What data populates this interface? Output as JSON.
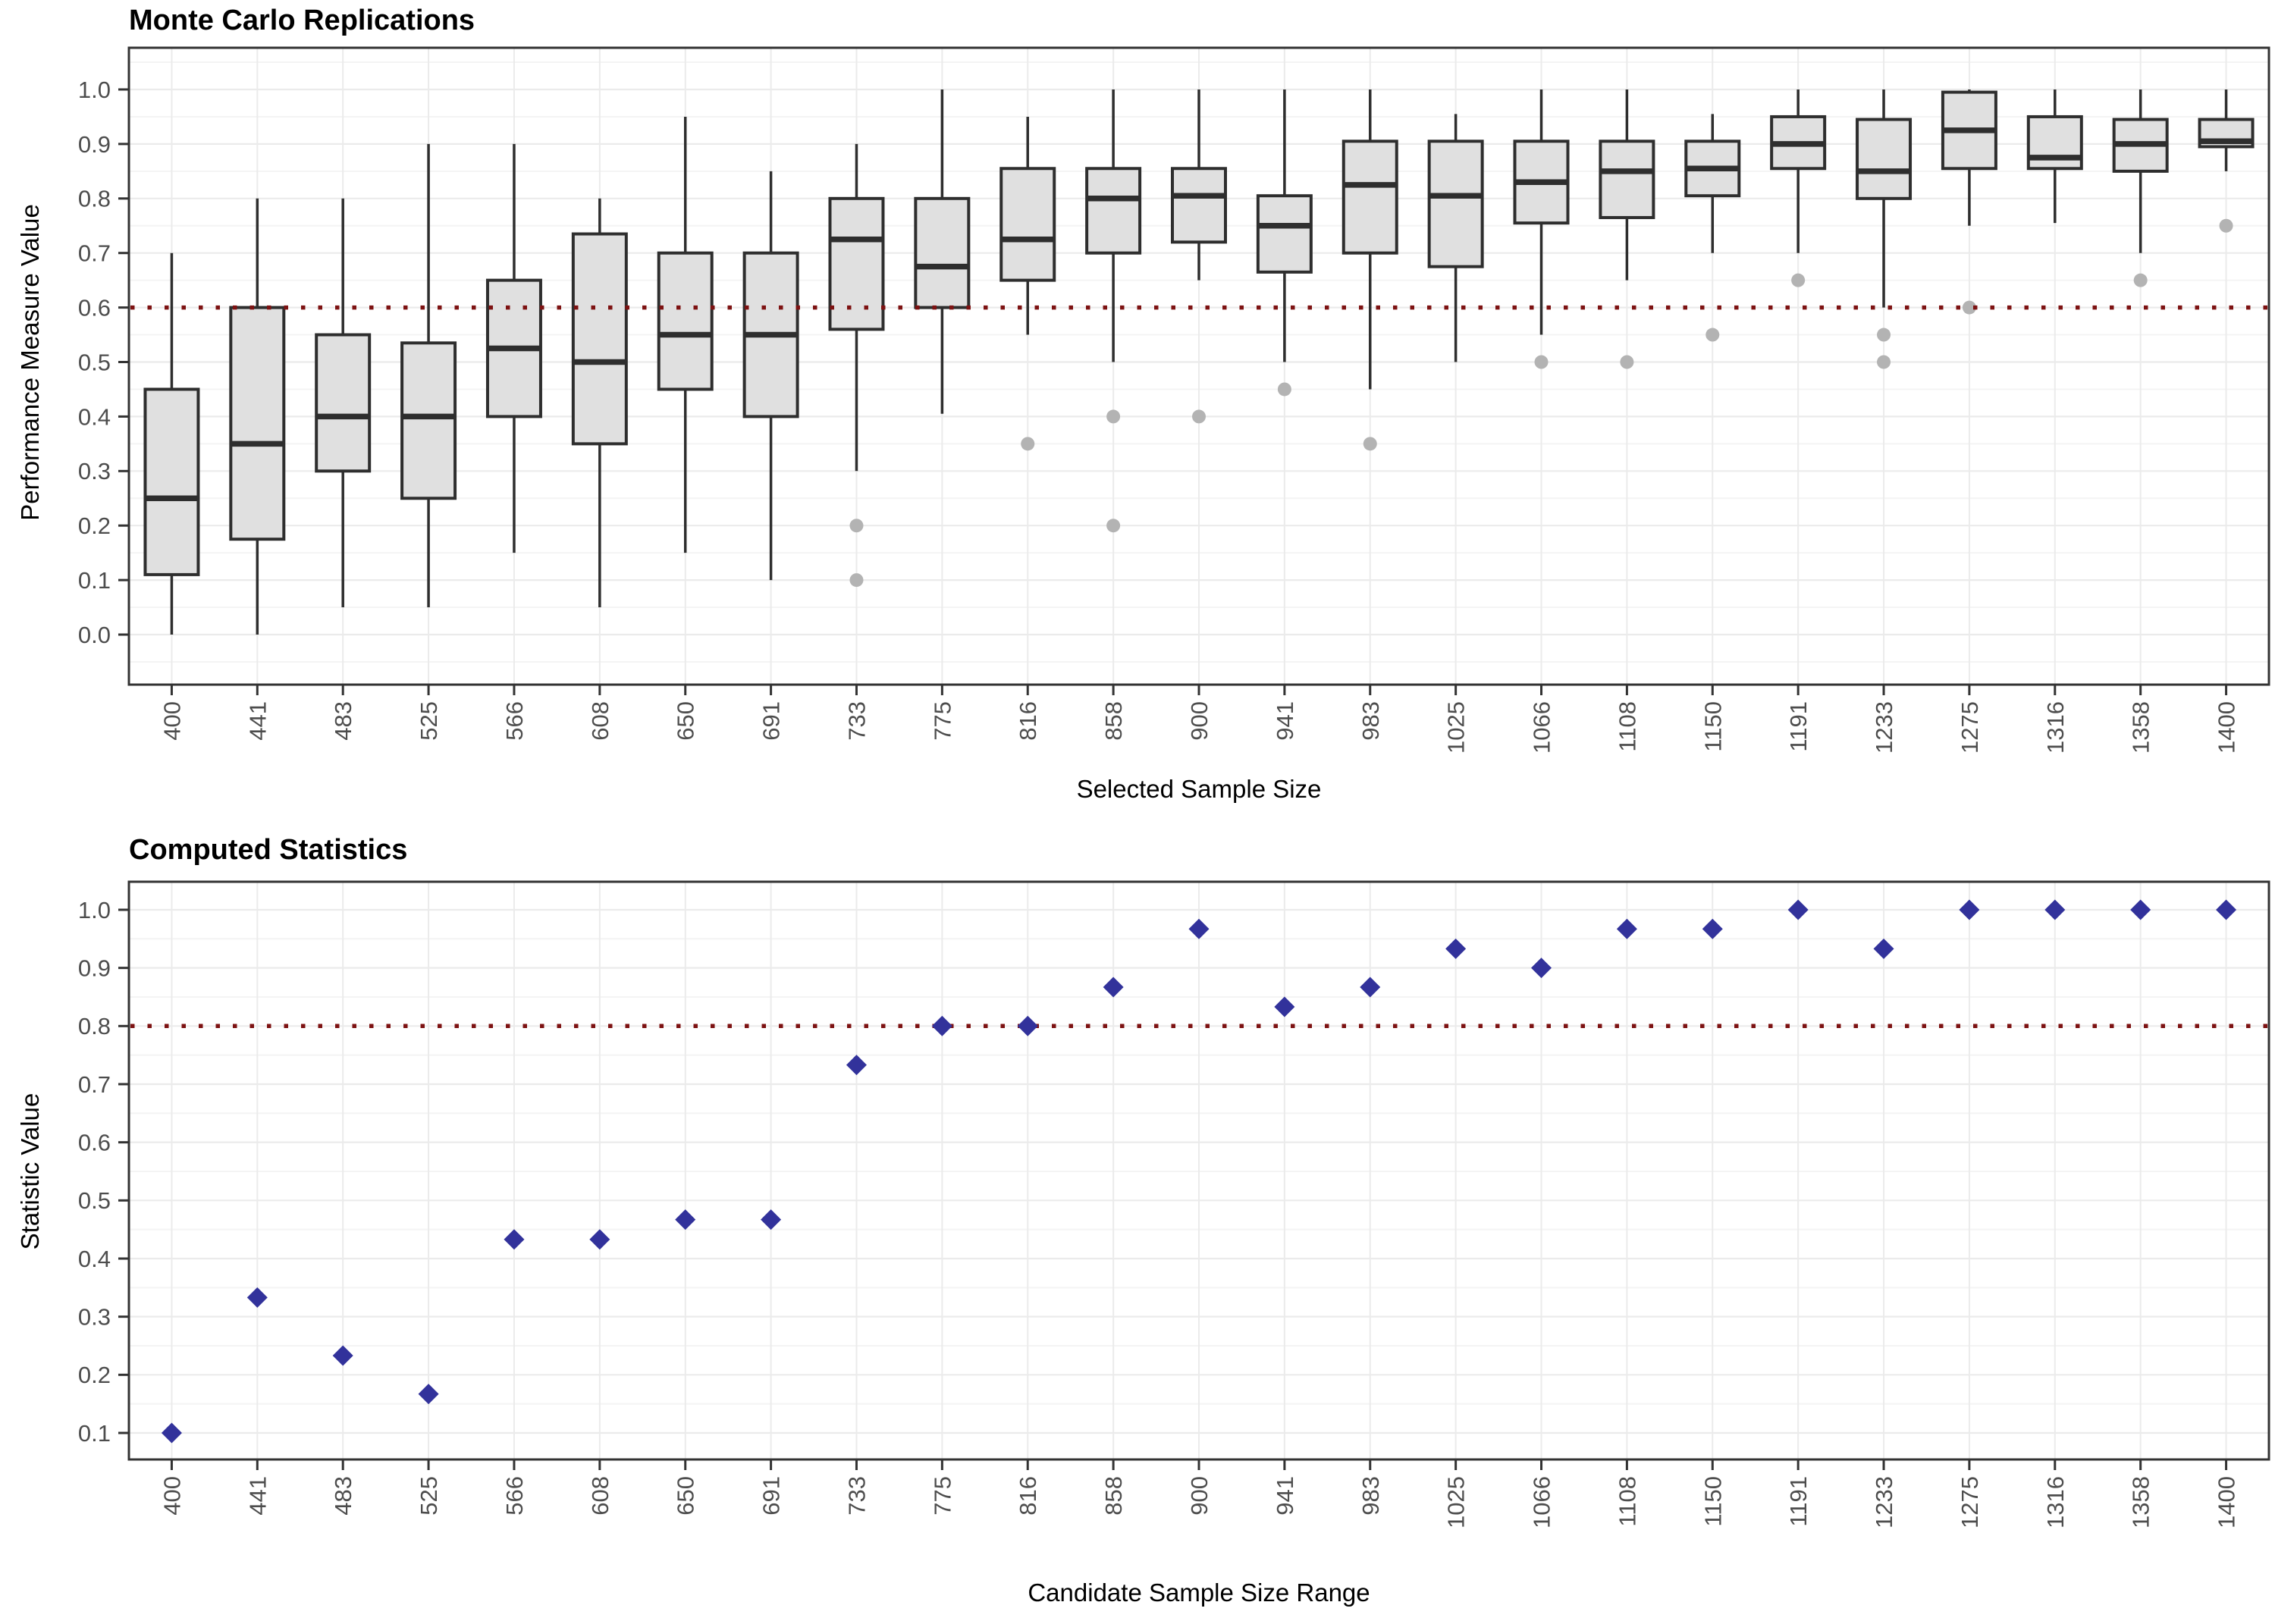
{
  "colors": {
    "background": "#ffffff",
    "panel_border": "#333333",
    "grid_major": "#EBEBEB",
    "grid_minor": "#F4F4F4",
    "axis_tick_text": "#4D4D4D",
    "title_text": "#000000",
    "box_fill": "#E0E0E0",
    "box_stroke": "#2E2E2E",
    "outlier_gray": "#B3B3B3",
    "ref_line_red": "#7D1212",
    "diamond_blue": "#32329B"
  },
  "chart_data": [
    {
      "type": "boxplot",
      "title": "Monte Carlo Replications",
      "xlabel": "Selected Sample Size",
      "ylabel": "Performance Measure Value",
      "ylim": [
        0.0,
        1.05
      ],
      "ytick_labels": [
        "0.0",
        "0.1",
        "0.2",
        "0.3",
        "0.4",
        "0.5",
        "0.6",
        "0.7",
        "0.8",
        "0.9",
        "1.0"
      ],
      "grid": "on",
      "legend": "none",
      "ref_line": {
        "y": 0.6,
        "style": "dotted",
        "color": "#7D1212"
      },
      "categories": [
        "400",
        "441",
        "483",
        "525",
        "566",
        "608",
        "650",
        "691",
        "733",
        "775",
        "816",
        "858",
        "900",
        "941",
        "983",
        "1025",
        "1066",
        "1108",
        "1150",
        "1191",
        "1233",
        "1275",
        "1316",
        "1358",
        "1400"
      ],
      "boxes": [
        {
          "n": "400",
          "low": 0.0,
          "q1": 0.11,
          "med": 0.25,
          "q3": 0.45,
          "high": 0.7,
          "out": []
        },
        {
          "n": "441",
          "low": 0.0,
          "q1": 0.175,
          "med": 0.35,
          "q3": 0.6,
          "high": 0.8,
          "out": []
        },
        {
          "n": "483",
          "low": 0.05,
          "q1": 0.3,
          "med": 0.4,
          "q3": 0.55,
          "high": 0.8,
          "out": []
        },
        {
          "n": "525",
          "low": 0.05,
          "q1": 0.25,
          "med": 0.4,
          "q3": 0.535,
          "high": 0.9,
          "out": []
        },
        {
          "n": "566",
          "low": 0.15,
          "q1": 0.4,
          "med": 0.525,
          "q3": 0.65,
          "high": 0.9,
          "out": []
        },
        {
          "n": "608",
          "low": 0.05,
          "q1": 0.35,
          "med": 0.5,
          "q3": 0.735,
          "high": 0.8,
          "out": []
        },
        {
          "n": "650",
          "low": 0.15,
          "q1": 0.45,
          "med": 0.55,
          "q3": 0.7,
          "high": 0.95,
          "out": []
        },
        {
          "n": "691",
          "low": 0.1,
          "q1": 0.4,
          "med": 0.55,
          "q3": 0.7,
          "high": 0.85,
          "out": []
        },
        {
          "n": "733",
          "low": 0.3,
          "q1": 0.56,
          "med": 0.725,
          "q3": 0.8,
          "high": 0.9,
          "out": [
            0.2,
            0.1
          ]
        },
        {
          "n": "775",
          "low": 0.405,
          "q1": 0.6,
          "med": 0.675,
          "q3": 0.8,
          "high": 1.0,
          "out": []
        },
        {
          "n": "816",
          "low": 0.55,
          "q1": 0.65,
          "med": 0.725,
          "q3": 0.855,
          "high": 0.95,
          "out": [
            0.35
          ]
        },
        {
          "n": "858",
          "low": 0.5,
          "q1": 0.7,
          "med": 0.8,
          "q3": 0.855,
          "high": 1.0,
          "out": [
            0.4,
            0.2
          ]
        },
        {
          "n": "900",
          "low": 0.65,
          "q1": 0.72,
          "med": 0.805,
          "q3": 0.855,
          "high": 1.0,
          "out": [
            0.4
          ]
        },
        {
          "n": "941",
          "low": 0.5,
          "q1": 0.665,
          "med": 0.75,
          "q3": 0.805,
          "high": 1.0,
          "out": [
            0.45
          ]
        },
        {
          "n": "983",
          "low": 0.45,
          "q1": 0.7,
          "med": 0.825,
          "q3": 0.905,
          "high": 1.0,
          "out": [
            0.35
          ]
        },
        {
          "n": "1025",
          "low": 0.5,
          "q1": 0.675,
          "med": 0.805,
          "q3": 0.905,
          "high": 0.955,
          "out": []
        },
        {
          "n": "1066",
          "low": 0.55,
          "q1": 0.755,
          "med": 0.83,
          "q3": 0.905,
          "high": 1.0,
          "out": [
            0.5
          ]
        },
        {
          "n": "1108",
          "low": 0.65,
          "q1": 0.765,
          "med": 0.85,
          "q3": 0.905,
          "high": 1.0,
          "out": [
            0.5
          ]
        },
        {
          "n": "1150",
          "low": 0.7,
          "q1": 0.805,
          "med": 0.855,
          "q3": 0.905,
          "high": 0.955,
          "out": [
            0.55
          ]
        },
        {
          "n": "1191",
          "low": 0.7,
          "q1": 0.855,
          "med": 0.9,
          "q3": 0.95,
          "high": 1.0,
          "out": [
            0.65
          ]
        },
        {
          "n": "1233",
          "low": 0.6,
          "q1": 0.8,
          "med": 0.85,
          "q3": 0.945,
          "high": 1.0,
          "out": [
            0.55,
            0.5
          ]
        },
        {
          "n": "1275",
          "low": 0.75,
          "q1": 0.855,
          "med": 0.925,
          "q3": 0.995,
          "high": 1.0,
          "out": [
            0.6
          ]
        },
        {
          "n": "1316",
          "low": 0.755,
          "q1": 0.855,
          "med": 0.875,
          "q3": 0.95,
          "high": 1.0,
          "out": []
        },
        {
          "n": "1358",
          "low": 0.7,
          "q1": 0.85,
          "med": 0.9,
          "q3": 0.945,
          "high": 1.0,
          "out": [
            0.65
          ]
        },
        {
          "n": "1400",
          "low": 0.85,
          "q1": 0.895,
          "med": 0.905,
          "q3": 0.945,
          "high": 1.0,
          "out": [
            0.75
          ]
        }
      ]
    },
    {
      "type": "scatter",
      "title": "Computed Statistics",
      "xlabel": "Candidate Sample Size Range",
      "ylabel": "Statistic Value",
      "ylim": [
        0.05,
        1.05
      ],
      "ytick_labels": [
        "0.1",
        "0.2",
        "0.3",
        "0.4",
        "0.5",
        "0.6",
        "0.7",
        "0.8",
        "0.9",
        "1.0"
      ],
      "grid": "on",
      "legend": "none",
      "marker": "diamond",
      "ref_line": {
        "y": 0.8,
        "style": "dotted",
        "color": "#7D1212"
      },
      "categories": [
        "400",
        "441",
        "483",
        "525",
        "566",
        "608",
        "650",
        "691",
        "733",
        "775",
        "816",
        "858",
        "900",
        "941",
        "983",
        "1025",
        "1066",
        "1108",
        "1150",
        "1191",
        "1233",
        "1275",
        "1316",
        "1358",
        "1400"
      ],
      "values": [
        0.1,
        0.333,
        0.233,
        0.167,
        0.433,
        0.433,
        0.467,
        0.467,
        0.733,
        0.8,
        0.8,
        0.867,
        0.967,
        0.833,
        0.867,
        0.933,
        0.9,
        0.967,
        0.967,
        1.0,
        0.933,
        1.0,
        1.0,
        1.0,
        1.0
      ]
    }
  ]
}
